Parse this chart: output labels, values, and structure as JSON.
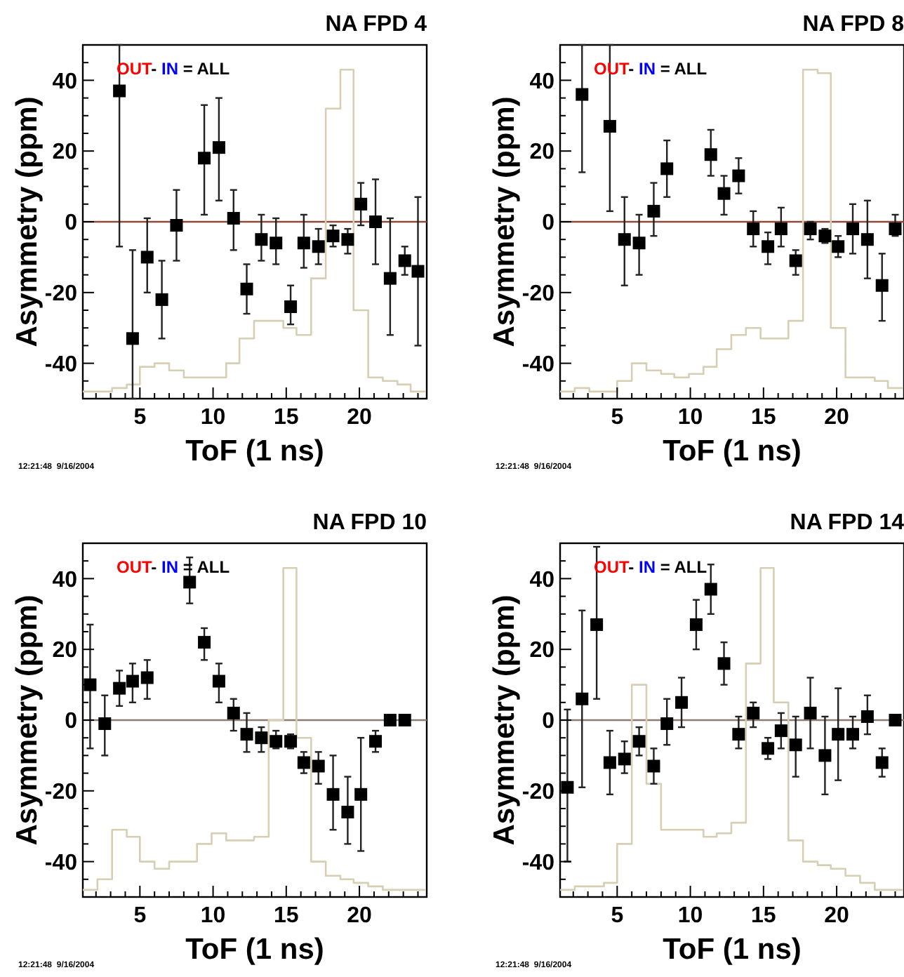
{
  "chart_data": [
    {
      "type": "scatter",
      "title": "NA FPD 4",
      "xlabel": "ToF (1 ns)",
      "ylabel": "Asymmetry (ppm)",
      "annotations": [
        "OUT",
        "- ",
        "IN",
        " = ALL",
        "12:21:48  9/16/2004"
      ],
      "xlim": [
        1.1,
        24.6
      ],
      "ylim": [
        -50,
        50
      ],
      "xticks": [
        {
          "value": 2,
          "label": null
        },
        {
          "value": 3,
          "label": null
        },
        {
          "value": 4,
          "label": null
        },
        5,
        {
          "value": 6,
          "label": null
        },
        {
          "value": 7,
          "label": null
        },
        {
          "value": 8,
          "label": null
        },
        {
          "value": 9,
          "label": null
        },
        10,
        {
          "value": 11,
          "label": null
        },
        {
          "value": 12,
          "label": null
        },
        {
          "value": 13,
          "label": null
        },
        {
          "value": 14,
          "label": null
        },
        15,
        {
          "value": 16,
          "label": null
        },
        {
          "value": 17,
          "label": null
        },
        {
          "value": 18,
          "label": null
        },
        {
          "value": 19,
          "label": null
        },
        20,
        {
          "value": 21,
          "label": null
        },
        {
          "value": 22,
          "label": null
        },
        {
          "value": 23,
          "label": null
        },
        {
          "value": 24,
          "label": null
        }
      ],
      "yticks": [
        {
          "value": -45,
          "label": null
        },
        -40,
        {
          "value": -35,
          "label": null
        },
        {
          "value": -30,
          "label": null
        },
        {
          "value": -25,
          "label": null
        },
        -20,
        {
          "value": -15,
          "label": null
        },
        {
          "value": -10,
          "label": null
        },
        {
          "value": -5,
          "label": null
        },
        0,
        {
          "value": 5,
          "label": null
        },
        {
          "value": 10,
          "label": null
        },
        {
          "value": 15,
          "label": null
        },
        20,
        {
          "value": 25,
          "label": null
        },
        {
          "value": 30,
          "label": null
        },
        {
          "value": 35,
          "label": null
        },
        40,
        {
          "value": 45,
          "label": null
        }
      ],
      "ref_lines": [
        {
          "axis": "y",
          "value": 0,
          "color": "#8b4a3a"
        }
      ],
      "series": [
        {
          "type": "step",
          "color": "#d6cfb4",
          "x": [
            1.1,
            2.1,
            3.1,
            4.1,
            5.0,
            6.0,
            7.0,
            8.0,
            8.9,
            9.9,
            10.9,
            11.8,
            12.8,
            13.8,
            14.8,
            15.7,
            16.7,
            17.7,
            18.7,
            19.6,
            20.6,
            21.6,
            22.6,
            23.5,
            24.5
          ],
          "values": [
            -48,
            -48,
            -47,
            -46,
            -41,
            -40,
            -42,
            -44,
            -44,
            -44,
            -40,
            -33,
            -28,
            -28,
            -30,
            -32,
            -16,
            32,
            43,
            -25,
            -44,
            -45,
            -46,
            -48,
            -48
          ]
        },
        {
          "marker": "square",
          "color": "#000000",
          "x": [
            3.6,
            4.5,
            5.5,
            6.5,
            7.5,
            9.4,
            10.4,
            11.4,
            12.3,
            13.3,
            14.3,
            15.3,
            16.2,
            17.2,
            18.2,
            19.2,
            20.1,
            21.1,
            22.1,
            23.1,
            24.0
          ],
          "values": [
            37,
            -33,
            -10,
            -22,
            -1,
            18,
            21,
            1,
            -19,
            -5,
            -6,
            -24,
            -6,
            -7,
            -4,
            -5,
            5,
            0,
            -16,
            -11,
            -14
          ],
          "errors": [
            [
              -7,
              50
            ],
            [
              -50,
              -8
            ],
            [
              -20,
              1
            ],
            [
              -33,
              -11
            ],
            [
              -11,
              9
            ],
            [
              2,
              33
            ],
            [
              6,
              35
            ],
            [
              -8,
              9
            ],
            [
              -26,
              -12
            ],
            [
              -11,
              2
            ],
            [
              -12,
              1
            ],
            [
              -29,
              -18
            ],
            [
              -13,
              2
            ],
            [
              -12,
              -2
            ],
            [
              -7,
              -1
            ],
            [
              -9,
              -2
            ],
            [
              -1,
              11
            ],
            [
              -12,
              12
            ],
            [
              -32,
              1
            ],
            [
              -15,
              -7
            ],
            [
              -35,
              7
            ]
          ]
        }
      ]
    },
    {
      "type": "scatter",
      "title": "NA FPD 8",
      "xlabel": "ToF (1 ns)",
      "ylabel": "Asymmetry (ppm)",
      "annotations": [
        "OUT",
        "- ",
        "IN",
        " = ALL",
        "12:21:48  9/16/2004"
      ],
      "xlim": [
        1.1,
        24.6
      ],
      "ylim": [
        -50,
        50
      ],
      "xticks": [
        {
          "value": 2,
          "label": null
        },
        {
          "value": 3,
          "label": null
        },
        {
          "value": 4,
          "label": null
        },
        5,
        {
          "value": 6,
          "label": null
        },
        {
          "value": 7,
          "label": null
        },
        {
          "value": 8,
          "label": null
        },
        {
          "value": 9,
          "label": null
        },
        10,
        {
          "value": 11,
          "label": null
        },
        {
          "value": 12,
          "label": null
        },
        {
          "value": 13,
          "label": null
        },
        {
          "value": 14,
          "label": null
        },
        15,
        {
          "value": 16,
          "label": null
        },
        {
          "value": 17,
          "label": null
        },
        {
          "value": 18,
          "label": null
        },
        {
          "value": 19,
          "label": null
        },
        20,
        {
          "value": 21,
          "label": null
        },
        {
          "value": 22,
          "label": null
        },
        {
          "value": 23,
          "label": null
        },
        {
          "value": 24,
          "label": null
        }
      ],
      "yticks": [
        {
          "value": -45,
          "label": null
        },
        -40,
        {
          "value": -35,
          "label": null
        },
        {
          "value": -30,
          "label": null
        },
        {
          "value": -25,
          "label": null
        },
        -20,
        {
          "value": -15,
          "label": null
        },
        {
          "value": -10,
          "label": null
        },
        {
          "value": -5,
          "label": null
        },
        0,
        {
          "value": 5,
          "label": null
        },
        {
          "value": 10,
          "label": null
        },
        {
          "value": 15,
          "label": null
        },
        20,
        {
          "value": 25,
          "label": null
        },
        {
          "value": 30,
          "label": null
        },
        {
          "value": 35,
          "label": null
        },
        40,
        {
          "value": 45,
          "label": null
        }
      ],
      "ref_lines": [
        {
          "axis": "y",
          "value": 0,
          "color": "#8b4a3a"
        }
      ],
      "series": [
        {
          "type": "step",
          "color": "#d6cfb4",
          "x": [
            1.1,
            2.1,
            3.1,
            4.1,
            5.0,
            6.0,
            7.0,
            8.0,
            8.9,
            9.9,
            10.9,
            11.8,
            12.8,
            13.8,
            14.8,
            15.7,
            16.7,
            17.7,
            18.7,
            19.6,
            20.6,
            21.6,
            22.6,
            23.5,
            24.5
          ],
          "values": [
            -48,
            -47,
            -48,
            -48,
            -45,
            -40,
            -42,
            -43,
            -44,
            -43,
            -41,
            -36,
            -32,
            -30,
            -33,
            -33,
            -28,
            43,
            42,
            -30,
            -44,
            -44,
            -45,
            -47,
            -47
          ]
        },
        {
          "marker": "square",
          "color": "#000000",
          "x": [
            2.6,
            4.5,
            5.5,
            6.5,
            7.5,
            8.4,
            11.4,
            12.3,
            13.3,
            14.3,
            15.3,
            16.2,
            17.2,
            18.2,
            19.2,
            20.1,
            21.1,
            22.1,
            23.1,
            24.0
          ],
          "values": [
            36,
            27,
            -5,
            -6,
            3,
            15,
            19,
            8,
            13,
            -2,
            -7,
            -2,
            -11,
            -2,
            -4,
            -7,
            -2,
            -5,
            -18,
            -2
          ],
          "errors": [
            [
              14,
              50
            ],
            [
              3,
              50
            ],
            [
              -18,
              7
            ],
            [
              -15,
              2
            ],
            [
              -4,
              11
            ],
            [
              7,
              23
            ],
            [
              13,
              26
            ],
            [
              2,
              13
            ],
            [
              8,
              18
            ],
            [
              -7,
              3
            ],
            [
              -12,
              -3
            ],
            [
              -7,
              4
            ],
            [
              -15,
              -8
            ],
            [
              -5,
              0
            ],
            [
              -6,
              -2
            ],
            [
              -10,
              -4
            ],
            [
              -9,
              5
            ],
            [
              -16,
              6
            ],
            [
              -28,
              -9
            ],
            [
              -4,
              2
            ]
          ]
        }
      ]
    },
    {
      "type": "scatter",
      "title": "NA FPD 10",
      "xlabel": "ToF (1 ns)",
      "ylabel": "Asymmetry (ppm)",
      "annotations": [
        "OUT",
        "- ",
        "IN",
        " = ALL",
        "12:21:48  9/16/2004"
      ],
      "xlim": [
        1.1,
        24.6
      ],
      "ylim": [
        -50,
        50
      ],
      "xticks": [
        {
          "value": 2,
          "label": null
        },
        {
          "value": 3,
          "label": null
        },
        {
          "value": 4,
          "label": null
        },
        5,
        {
          "value": 6,
          "label": null
        },
        {
          "value": 7,
          "label": null
        },
        {
          "value": 8,
          "label": null
        },
        {
          "value": 9,
          "label": null
        },
        10,
        {
          "value": 11,
          "label": null
        },
        {
          "value": 12,
          "label": null
        },
        {
          "value": 13,
          "label": null
        },
        {
          "value": 14,
          "label": null
        },
        15,
        {
          "value": 16,
          "label": null
        },
        {
          "value": 17,
          "label": null
        },
        {
          "value": 18,
          "label": null
        },
        {
          "value": 19,
          "label": null
        },
        20,
        {
          "value": 21,
          "label": null
        },
        {
          "value": 22,
          "label": null
        },
        {
          "value": 23,
          "label": null
        },
        {
          "value": 24,
          "label": null
        }
      ],
      "yticks": [
        {
          "value": -45,
          "label": null
        },
        -40,
        {
          "value": -35,
          "label": null
        },
        {
          "value": -30,
          "label": null
        },
        {
          "value": -25,
          "label": null
        },
        -20,
        {
          "value": -15,
          "label": null
        },
        {
          "value": -10,
          "label": null
        },
        {
          "value": -5,
          "label": null
        },
        0,
        {
          "value": 5,
          "label": null
        },
        {
          "value": 10,
          "label": null
        },
        {
          "value": 15,
          "label": null
        },
        20,
        {
          "value": 25,
          "label": null
        },
        {
          "value": 30,
          "label": null
        },
        {
          "value": 35,
          "label": null
        },
        40,
        {
          "value": 45,
          "label": null
        }
      ],
      "ref_lines": [
        {
          "axis": "y",
          "value": 0,
          "color": "#8c7b72"
        }
      ],
      "series": [
        {
          "type": "step",
          "color": "#d6cfb4",
          "x": [
            1.1,
            2.1,
            3.1,
            4.1,
            5.0,
            6.0,
            7.0,
            8.0,
            8.9,
            9.9,
            10.9,
            11.8,
            12.8,
            13.8,
            14.8,
            15.7,
            16.7,
            17.7,
            18.7,
            19.6,
            20.6,
            21.6,
            22.6,
            23.5,
            24.5
          ],
          "values": [
            -48,
            -45,
            -31,
            -33,
            -40,
            -42,
            -40,
            -40,
            -35,
            -32,
            -34,
            -34,
            -33,
            0,
            43,
            -5,
            -40,
            -44,
            -45,
            -46,
            -47,
            -48,
            -48,
            -48,
            -48
          ]
        },
        {
          "marker": "square",
          "color": "#000000",
          "x": [
            1.6,
            2.6,
            3.6,
            4.5,
            5.5,
            8.4,
            9.4,
            10.4,
            11.4,
            12.3,
            13.3,
            14.3,
            15.3,
            16.2,
            17.2,
            18.2,
            19.2,
            20.1,
            21.1,
            22.1,
            23.1
          ],
          "values": [
            10,
            -1,
            9,
            11,
            12,
            39,
            22,
            11,
            2,
            -4,
            -5,
            -6,
            -6,
            -12,
            -13,
            -21,
            -26,
            -21,
            -6,
            0,
            0
          ],
          "errors": [
            [
              -8,
              27
            ],
            [
              -10,
              7
            ],
            [
              4,
              14
            ],
            [
              5,
              16
            ],
            [
              6,
              17
            ],
            [
              33,
              46
            ],
            [
              17,
              26
            ],
            [
              5,
              16
            ],
            [
              -3,
              6
            ],
            [
              -9,
              2
            ],
            [
              -9,
              -2
            ],
            [
              -8,
              -3
            ],
            [
              -8,
              -4
            ],
            [
              -15,
              -9
            ],
            [
              -18,
              -9
            ],
            [
              -31,
              -10
            ],
            [
              -35,
              -16
            ],
            [
              -37,
              -5
            ],
            [
              -9,
              -3
            ],
            null,
            null
          ]
        }
      ]
    },
    {
      "type": "scatter",
      "title": "NA FPD 14",
      "xlabel": "ToF (1 ns)",
      "ylabel": "Asymmetry (ppm)",
      "annotations": [
        "OUT",
        "- ",
        "IN",
        " = ALL",
        "12:21:48  9/16/2004"
      ],
      "xlim": [
        1.1,
        24.6
      ],
      "ylim": [
        -50,
        50
      ],
      "xticks": [
        {
          "value": 2,
          "label": null
        },
        {
          "value": 3,
          "label": null
        },
        {
          "value": 4,
          "label": null
        },
        5,
        {
          "value": 6,
          "label": null
        },
        {
          "value": 7,
          "label": null
        },
        {
          "value": 8,
          "label": null
        },
        {
          "value": 9,
          "label": null
        },
        10,
        {
          "value": 11,
          "label": null
        },
        {
          "value": 12,
          "label": null
        },
        {
          "value": 13,
          "label": null
        },
        {
          "value": 14,
          "label": null
        },
        15,
        {
          "value": 16,
          "label": null
        },
        {
          "value": 17,
          "label": null
        },
        {
          "value": 18,
          "label": null
        },
        {
          "value": 19,
          "label": null
        },
        20,
        {
          "value": 21,
          "label": null
        },
        {
          "value": 22,
          "label": null
        },
        {
          "value": 23,
          "label": null
        },
        {
          "value": 24,
          "label": null
        }
      ],
      "yticks": [
        {
          "value": -45,
          "label": null
        },
        -40,
        {
          "value": -35,
          "label": null
        },
        {
          "value": -30,
          "label": null
        },
        {
          "value": -25,
          "label": null
        },
        -20,
        {
          "value": -15,
          "label": null
        },
        {
          "value": -10,
          "label": null
        },
        {
          "value": -5,
          "label": null
        },
        0,
        {
          "value": 5,
          "label": null
        },
        {
          "value": 10,
          "label": null
        },
        {
          "value": 15,
          "label": null
        },
        20,
        {
          "value": 25,
          "label": null
        },
        {
          "value": 30,
          "label": null
        },
        {
          "value": 35,
          "label": null
        },
        40,
        {
          "value": 45,
          "label": null
        }
      ],
      "ref_lines": [
        {
          "axis": "y",
          "value": 0,
          "color": "#8c7b72"
        }
      ],
      "series": [
        {
          "type": "step",
          "color": "#d6cfb4",
          "x": [
            1.1,
            2.1,
            3.1,
            4.1,
            5.0,
            6.0,
            7.0,
            8.0,
            8.9,
            9.9,
            10.9,
            11.8,
            12.8,
            13.8,
            14.8,
            15.7,
            16.7,
            17.7,
            18.7,
            19.6,
            20.6,
            21.6,
            22.6,
            23.5,
            24.5
          ],
          "values": [
            -48,
            -47,
            -47,
            -46,
            -35,
            10,
            -18,
            -31,
            -31,
            -31,
            -33,
            -32,
            -29,
            16,
            43,
            5,
            -34,
            -40,
            -41,
            -42,
            -44,
            -46,
            -48,
            -48,
            -48
          ]
        },
        {
          "marker": "square",
          "color": "#000000",
          "x": [
            1.6,
            2.6,
            3.6,
            4.5,
            5.5,
            6.5,
            7.5,
            8.4,
            9.4,
            10.4,
            11.4,
            12.3,
            13.3,
            14.3,
            15.3,
            16.2,
            17.2,
            18.2,
            19.2,
            20.1,
            21.1,
            22.1,
            23.1,
            24.0
          ],
          "values": [
            -19,
            6,
            27,
            -12,
            -11,
            -6,
            -13,
            -1,
            5,
            27,
            37,
            16,
            -4,
            2,
            -8,
            -3,
            -7,
            2,
            -10,
            -4,
            -4,
            1,
            -12,
            0
          ],
          "errors": [
            [
              -40,
              3
            ],
            [
              -19,
              31
            ],
            [
              6,
              49
            ],
            [
              -21,
              -3
            ],
            [
              -15,
              -6
            ],
            [
              -10,
              -2
            ],
            [
              -18,
              -8
            ],
            [
              -7,
              6
            ],
            [
              -2,
              12
            ],
            [
              20,
              34
            ],
            [
              30,
              44
            ],
            [
              10,
              22
            ],
            [
              -8,
              1
            ],
            [
              -2,
              5
            ],
            [
              -11,
              -5
            ],
            [
              -8,
              2
            ],
            [
              -16,
              1
            ],
            [
              -8,
              12
            ],
            [
              -21,
              1
            ],
            [
              -17,
              9
            ],
            [
              -8,
              1
            ],
            [
              -4,
              7
            ],
            [
              -16,
              -8
            ],
            null
          ]
        }
      ]
    }
  ]
}
